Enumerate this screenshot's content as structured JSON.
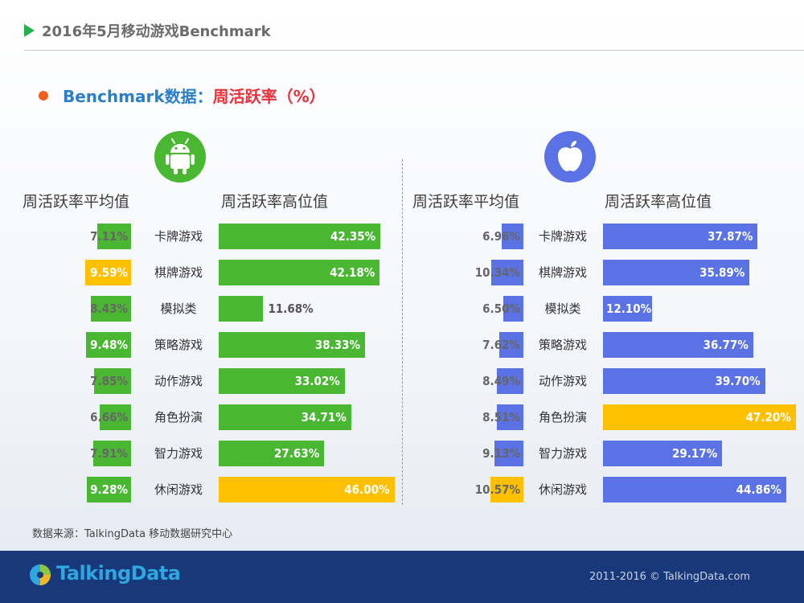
{
  "header": {
    "title": "2016年5月移动游戏Benchmark"
  },
  "subtitle": {
    "prefix": "Benchmark数据：",
    "metric": "周活跃率（%）"
  },
  "colors": {
    "android_green": "#4ab733",
    "ios_blue": "#5a72e4",
    "highlight_gold": "#ffc000",
    "title_blue": "#2a7fc8",
    "metric_red": "#e8313a"
  },
  "icons": {
    "android": "android-robot-icon",
    "ios": "apple-icon"
  },
  "chart_data": [
    {
      "type": "bar",
      "platform": "android",
      "categories": [
        "卡牌游戏",
        "棋牌游戏",
        "模拟类",
        "策略游戏",
        "动作游戏",
        "角色扮演",
        "智力游戏",
        "休闲游戏"
      ],
      "avg_label": "周活跃率平均值",
      "high_label": "周活跃率高位值",
      "avg": {
        "values": [
          7.11,
          9.59,
          8.43,
          9.48,
          7.85,
          6.66,
          7.91,
          9.28
        ],
        "labels": [
          "7.11%",
          "9.59%",
          "8.43%",
          "9.48%",
          "7.85%",
          "6.66%",
          "7.91%",
          "9.28%"
        ],
        "highlight_index": 1
      },
      "high": {
        "values": [
          42.35,
          42.18,
          11.68,
          38.33,
          33.02,
          34.71,
          27.63,
          46.0
        ],
        "labels": [
          "42.35%",
          "42.18%",
          "11.68%",
          "38.33%",
          "33.02%",
          "34.71%",
          "27.63%",
          "46.00%"
        ],
        "highlight_index": 7
      }
    },
    {
      "type": "bar",
      "platform": "ios",
      "categories": [
        "卡牌游戏",
        "棋牌游戏",
        "模拟类",
        "策略游戏",
        "动作游戏",
        "角色扮演",
        "智力游戏",
        "休闲游戏"
      ],
      "avg_label": "周活跃率平均值",
      "high_label": "周活跃率高位值",
      "avg": {
        "values": [
          6.96,
          10.34,
          6.5,
          7.62,
          8.49,
          8.51,
          9.13,
          10.57
        ],
        "labels": [
          "6.96%",
          "10.34%",
          "6.50%",
          "7.62%",
          "8.49%",
          "8.51%",
          "9.13%",
          "10.57%"
        ],
        "highlight_index": 7
      },
      "high": {
        "values": [
          37.87,
          35.89,
          12.1,
          36.77,
          39.7,
          47.2,
          29.17,
          44.86
        ],
        "labels": [
          "37.87%",
          "35.89%",
          "12.10%",
          "36.77%",
          "39.70%",
          "47.20%",
          "29.17%",
          "44.86%"
        ],
        "highlight_index": 5
      }
    }
  ],
  "source": "数据来源：TalkingData 移动数据研究中心",
  "footer": {
    "logo": "TalkingData",
    "copyright": "2011-2016 © TalkingData.com"
  }
}
